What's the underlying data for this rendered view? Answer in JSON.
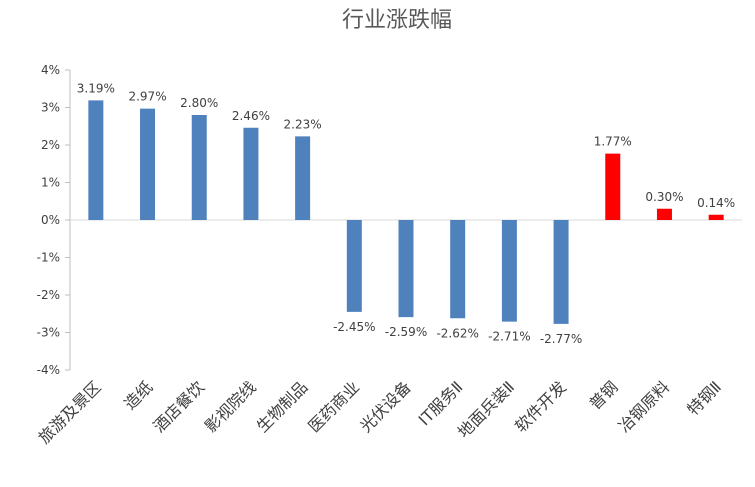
{
  "chart_data": {
    "type": "bar",
    "title": "行业涨跌幅",
    "xlabel": "",
    "ylabel": "",
    "ylim": [
      -4,
      4
    ],
    "yticks": [
      4,
      3,
      2,
      1,
      0,
      -1,
      -2,
      -3,
      -4
    ],
    "ytick_labels": [
      "4%",
      "3%",
      "2%",
      "1%",
      "0%",
      "-1%",
      "-2%",
      "-3%",
      "-4%"
    ],
    "grid": false,
    "legend": "none",
    "categories": [
      "旅游及景区",
      "造纸",
      "酒店餐饮",
      "影视院线",
      "生物制品",
      "医药商业",
      "光伏设备",
      "IT服务Ⅱ",
      "地面兵装Ⅱ",
      "软件开发",
      "普钢",
      "冶钢原料",
      "特钢Ⅱ"
    ],
    "values": [
      3.19,
      2.97,
      2.8,
      2.46,
      2.23,
      -2.45,
      -2.59,
      -2.62,
      -2.71,
      -2.77,
      1.77,
      0.3,
      0.14
    ],
    "value_labels": [
      "3.19%",
      "2.97%",
      "2.80%",
      "2.46%",
      "2.23%",
      "-2.45%",
      "-2.59%",
      "-2.62%",
      "-2.71%",
      "-2.77%",
      "1.77%",
      "0.30%",
      "0.14%"
    ],
    "bar_colors": [
      "#4f81bd",
      "#4f81bd",
      "#4f81bd",
      "#4f81bd",
      "#4f81bd",
      "#4f81bd",
      "#4f81bd",
      "#4f81bd",
      "#4f81bd",
      "#4f81bd",
      "#ff0000",
      "#ff0000",
      "#ff0000"
    ]
  }
}
